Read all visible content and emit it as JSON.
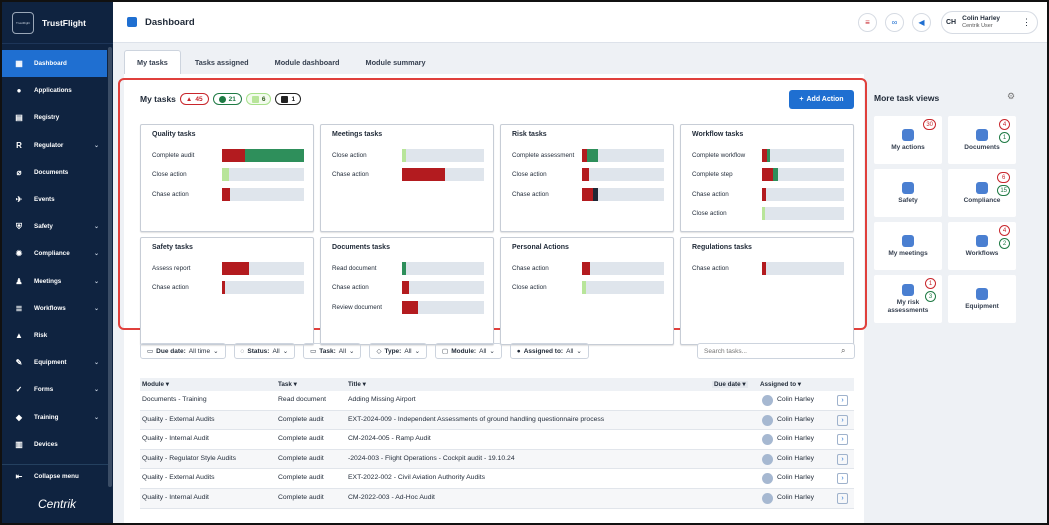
{
  "brand": {
    "name": "TrustFlight",
    "logo_text": "TrustFlight"
  },
  "sidebar": {
    "items": [
      {
        "label": "Dashboard",
        "icon": "dashboard-icon",
        "glyph": "▦",
        "active": true,
        "chevron": false
      },
      {
        "label": "Applications",
        "icon": "person-icon",
        "glyph": "●",
        "active": false,
        "chevron": false
      },
      {
        "label": "Registry",
        "icon": "registry-icon",
        "glyph": "▤",
        "active": false,
        "chevron": false
      },
      {
        "label": "Regulator",
        "icon": "regulator-icon",
        "glyph": "R",
        "active": false,
        "chevron": true
      },
      {
        "label": "Documents",
        "icon": "paperclip-icon",
        "glyph": "⌀",
        "active": false,
        "chevron": false
      },
      {
        "label": "Events",
        "icon": "plane-icon",
        "glyph": "✈",
        "active": false,
        "chevron": false
      },
      {
        "label": "Safety",
        "icon": "shield-icon",
        "glyph": "⛨",
        "active": false,
        "chevron": true
      },
      {
        "label": "Compliance",
        "icon": "gear-icon",
        "glyph": "✹",
        "active": false,
        "chevron": true
      },
      {
        "label": "Meetings",
        "icon": "meetings-icon",
        "glyph": "♟",
        "active": false,
        "chevron": true
      },
      {
        "label": "Workflows",
        "icon": "workflow-icon",
        "glyph": "≣",
        "active": false,
        "chevron": true
      },
      {
        "label": "Risk",
        "icon": "risk-icon",
        "glyph": "▲",
        "active": false,
        "chevron": false
      },
      {
        "label": "Equipment",
        "icon": "wrench-icon",
        "glyph": "✎",
        "active": false,
        "chevron": true
      },
      {
        "label": "Forms",
        "icon": "forms-icon",
        "glyph": "✓",
        "active": false,
        "chevron": true
      },
      {
        "label": "Training",
        "icon": "graduation-cap-icon",
        "glyph": "◆",
        "active": false,
        "chevron": true
      },
      {
        "label": "Devices",
        "icon": "devices-icon",
        "glyph": "▥",
        "active": false,
        "chevron": false
      }
    ],
    "collapse_label": "Collapse menu",
    "footer_logo": "Centrik"
  },
  "header": {
    "title": "Dashboard",
    "user": {
      "initials": "CH",
      "name": "Colin Harley",
      "role": "Centrik User"
    }
  },
  "tabs": [
    "My tasks",
    "Tasks assigned",
    "Module dashboard",
    "Module summary"
  ],
  "my_tasks": {
    "title": "My tasks",
    "counts": {
      "overdue": "45",
      "ontime": "21",
      "new": "6",
      "other": "1"
    },
    "add_action_label": "Add Action",
    "cards": [
      {
        "title": "Quality tasks",
        "rows": [
          {
            "label": "Complete audit",
            "segs": [
              {
                "c": "red",
                "v": 0.28
              },
              {
                "c": "green",
                "v": 0.72
              }
            ]
          },
          {
            "label": "Close action",
            "segs": [
              {
                "c": "lgreen",
                "v": 0.08
              }
            ]
          },
          {
            "label": "Chase action",
            "segs": [
              {
                "c": "red",
                "v": 0.1
              }
            ]
          }
        ]
      },
      {
        "title": "Meetings tasks",
        "rows": [
          {
            "label": "Close action",
            "segs": [
              {
                "c": "lgreen",
                "v": 0.05
              }
            ]
          },
          {
            "label": "Chase action",
            "segs": [
              {
                "c": "red",
                "v": 0.52
              }
            ]
          }
        ]
      },
      {
        "title": "Risk tasks",
        "rows": [
          {
            "label": "Complete assessment",
            "segs": [
              {
                "c": "red",
                "v": 0.06
              },
              {
                "c": "green",
                "v": 0.13
              }
            ]
          },
          {
            "label": "Close action",
            "segs": [
              {
                "c": "red",
                "v": 0.09
              }
            ]
          },
          {
            "label": "Chase action",
            "segs": [
              {
                "c": "red",
                "v": 0.14
              },
              {
                "c": "dark",
                "v": 0.05
              }
            ]
          }
        ]
      },
      {
        "title": "Workflow tasks",
        "rows": [
          {
            "label": "Complete workflow",
            "segs": [
              {
                "c": "red",
                "v": 0.06
              },
              {
                "c": "green",
                "v": 0.04
              }
            ]
          },
          {
            "label": "Complete step",
            "segs": [
              {
                "c": "red",
                "v": 0.14
              },
              {
                "c": "green",
                "v": 0.06
              }
            ]
          },
          {
            "label": "Chase action",
            "segs": [
              {
                "c": "red",
                "v": 0.05
              }
            ]
          },
          {
            "label": "Close action",
            "segs": [
              {
                "c": "lgreen",
                "v": 0.04
              }
            ]
          }
        ]
      },
      {
        "title": "Safety tasks",
        "rows": [
          {
            "label": "Assess report",
            "segs": [
              {
                "c": "red",
                "v": 0.33
              }
            ]
          },
          {
            "label": "Chase action",
            "segs": [
              {
                "c": "red",
                "v": 0.04
              }
            ]
          }
        ]
      },
      {
        "title": "Documents tasks",
        "rows": [
          {
            "label": "Read document",
            "segs": [
              {
                "c": "green",
                "v": 0.05
              }
            ]
          },
          {
            "label": "Chase action",
            "segs": [
              {
                "c": "red",
                "v": 0.09
              }
            ]
          },
          {
            "label": "Review document",
            "segs": [
              {
                "c": "red",
                "v": 0.2
              }
            ]
          }
        ]
      },
      {
        "title": "Personal Actions",
        "rows": [
          {
            "label": "Chase action",
            "segs": [
              {
                "c": "red",
                "v": 0.1
              }
            ]
          },
          {
            "label": "Close action",
            "segs": [
              {
                "c": "lgreen",
                "v": 0.05
              }
            ]
          }
        ]
      },
      {
        "title": "Regulations tasks",
        "rows": [
          {
            "label": "Chase action",
            "segs": [
              {
                "c": "red",
                "v": 0.05
              }
            ]
          }
        ]
      }
    ]
  },
  "filters": [
    {
      "icon": "calendar-icon",
      "glyph": "▭",
      "name": "Due date:",
      "value": "All time"
    },
    {
      "icon": "status-icon",
      "glyph": "◌",
      "name": "Status:",
      "value": "All"
    },
    {
      "icon": "task-icon",
      "glyph": "▭",
      "name": "Task:",
      "value": "All"
    },
    {
      "icon": "tag-icon",
      "glyph": "◇",
      "name": "Type:",
      "value": "All"
    },
    {
      "icon": "module-icon",
      "glyph": "▢",
      "name": "Module:",
      "value": "All"
    },
    {
      "icon": "assignee-icon",
      "glyph": "●",
      "name": "Assigned to:",
      "value": "All"
    }
  ],
  "search": {
    "placeholder": "Search tasks..."
  },
  "table": {
    "headers": {
      "module": "Module ▾",
      "task": "Task ▾",
      "title": "Title ▾",
      "due": "Due date ▾",
      "assigned": "Assigned to ▾"
    },
    "rows": [
      {
        "module": "Documents - Training",
        "task": "Read document",
        "title": "Adding Missing Airport",
        "assigned": "Colin Harley"
      },
      {
        "module": "Quality - External Audits",
        "task": "Complete audit",
        "title": "EXT-2024-009 - Independent Assessments of ground handling questionnaire process",
        "assigned": "Colin Harley"
      },
      {
        "module": "Quality - Internal Audit",
        "task": "Complete audit",
        "title": "CM-2024-005 - Ramp Audit",
        "assigned": "Colin Harley"
      },
      {
        "module": "Quality - Regulator Style Audits",
        "task": "Complete audit",
        "title": "-2024-003 - Flight Operations - Cockpit audit - 19.10.24",
        "assigned": "Colin Harley"
      },
      {
        "module": "Quality - External Audits",
        "task": "Complete audit",
        "title": "EXT-2022-002 - Civil Aviation Authority Audits",
        "assigned": "Colin Harley"
      },
      {
        "module": "Quality - Internal Audit",
        "task": "Complete audit",
        "title": "CM-2022-003 - Ad-Hoc Audit",
        "assigned": "Colin Harley"
      }
    ]
  },
  "more_task_views": {
    "title": "More task views",
    "items": [
      {
        "label": "My actions",
        "icon": "my-actions-icon",
        "badges": [
          {
            "c": "red",
            "v": "30"
          }
        ]
      },
      {
        "label": "Documents",
        "icon": "documents-icon",
        "badges": [
          {
            "c": "red",
            "v": "4"
          },
          {
            "c": "green",
            "v": "1"
          }
        ]
      },
      {
        "label": "Safety",
        "icon": "safety-icon",
        "badges": []
      },
      {
        "label": "Compliance",
        "icon": "compliance-icon",
        "badges": [
          {
            "c": "red",
            "v": "6"
          },
          {
            "c": "green",
            "v": "15"
          }
        ]
      },
      {
        "label": "My meetings",
        "icon": "meetings-icon",
        "badges": []
      },
      {
        "label": "Workflows",
        "icon": "workflows-icon",
        "badges": [
          {
            "c": "red",
            "v": "4"
          },
          {
            "c": "green",
            "v": "2"
          }
        ]
      },
      {
        "label": "My risk assessments",
        "icon": "risk-icon",
        "badges": [
          {
            "c": "red",
            "v": "1"
          },
          {
            "c": "green",
            "v": "3"
          }
        ]
      },
      {
        "label": "Equipment",
        "icon": "equipment-icon",
        "badges": []
      }
    ]
  }
}
